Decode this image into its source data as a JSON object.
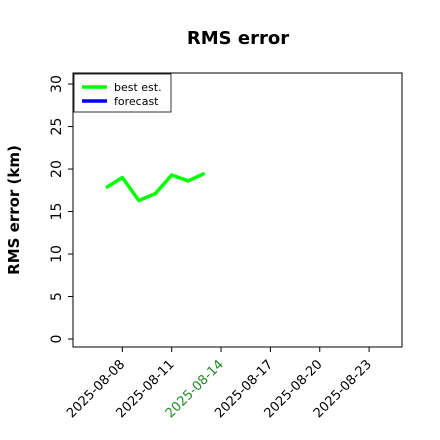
{
  "chart_data": {
    "type": "line",
    "title": "RMS error",
    "y_label": "RMS error (km)",
    "x": [
      "2025-08-07",
      "2025-08-08",
      "2025-08-09",
      "2025-08-10",
      "2025-08-11",
      "2025-08-12",
      "2025-08-13"
    ],
    "series": [
      {
        "name": "best est.",
        "color": "#00ff00",
        "values": [
          17.8,
          19.0,
          16.3,
          17.1,
          19.3,
          18.6,
          19.5
        ]
      },
      {
        "name": "forecast",
        "color": "#0000ff",
        "values": [
          null,
          null,
          null,
          null,
          null,
          null,
          null
        ]
      }
    ],
    "xlim": [
      "2025-08-05",
      "2025-08-25"
    ],
    "xticks": [
      "2025-08-08",
      "2025-08-11",
      "2025-08-14",
      "2025-08-17",
      "2025-08-20",
      "2025-08-23"
    ],
    "highlight_xtick": "2025-08-14",
    "highlight_color": "#228b22",
    "ylim": [
      -0.94,
      31.3
    ],
    "yticks": [
      0,
      5,
      10,
      15,
      20,
      25,
      30
    ],
    "legend": "upper left"
  }
}
